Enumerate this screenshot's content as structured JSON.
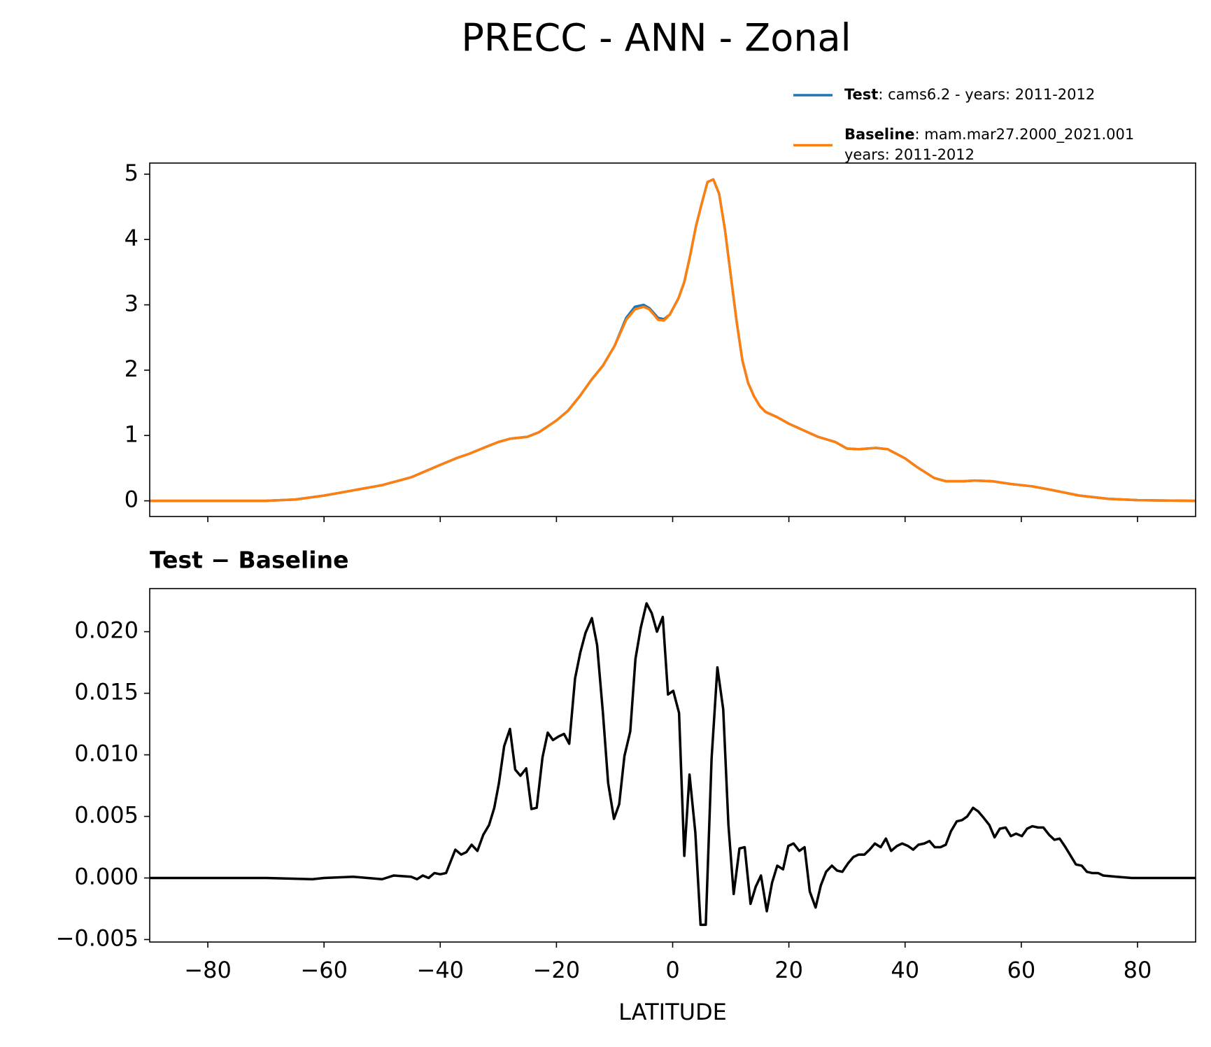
{
  "chart_data": [
    {
      "type": "line",
      "title": "PRECC - ANN - Zonal",
      "xlim": [
        -90,
        90
      ],
      "ylim": [
        -0.24,
        5.17
      ],
      "xticks": [
        -80,
        -60,
        -40,
        -20,
        0,
        20,
        40,
        60,
        80
      ],
      "yticks": [
        0,
        1,
        2,
        3,
        4,
        5
      ],
      "x": [
        -90,
        -70,
        -65,
        -60,
        -55,
        -50,
        -45,
        -40,
        -37,
        -35,
        -32,
        -30,
        -28,
        -25,
        -23,
        -20,
        -18,
        -16,
        -14,
        -12,
        -10,
        -8,
        -6.5,
        -5,
        -4,
        -2.5,
        -1.5,
        -0.5,
        1,
        2,
        3,
        4,
        5,
        6,
        7,
        8,
        9,
        10,
        11,
        12,
        13,
        14,
        15,
        16,
        18,
        20,
        22,
        25,
        28,
        30,
        32,
        35,
        37,
        40,
        42,
        45,
        47,
        50,
        52,
        55,
        58,
        60,
        62,
        65,
        70,
        75,
        80,
        90
      ],
      "series": [
        {
          "name": "Test",
          "description": [
            ": cams6.2 - years: 2011-2012"
          ],
          "color": "#1f77b4",
          "values": [
            0,
            0,
            0.02,
            0.08,
            0.16,
            0.24,
            0.36,
            0.55,
            0.66,
            0.72,
            0.83,
            0.9,
            0.95,
            0.98,
            1.05,
            1.23,
            1.38,
            1.6,
            1.85,
            2.07,
            2.37,
            2.8,
            2.97,
            3.0,
            2.95,
            2.8,
            2.78,
            2.85,
            3.1,
            3.35,
            3.75,
            4.2,
            4.55,
            4.88,
            4.92,
            4.7,
            4.15,
            3.45,
            2.75,
            2.15,
            1.8,
            1.6,
            1.45,
            1.36,
            1.28,
            1.18,
            1.1,
            0.98,
            0.9,
            0.8,
            0.79,
            0.81,
            0.79,
            0.65,
            0.52,
            0.35,
            0.3,
            0.3,
            0.31,
            0.3,
            0.26,
            0.24,
            0.22,
            0.17,
            0.08,
            0.03,
            0.01,
            0
          ]
        },
        {
          "name": "Baseline",
          "description": [
            ": mam.mar27.2000_2021.001",
            "years: 2011-2012"
          ],
          "color": "#ff7f0e",
          "values": [
            0,
            0,
            0.02,
            0.08,
            0.16,
            0.24,
            0.36,
            0.55,
            0.66,
            0.72,
            0.83,
            0.9,
            0.95,
            0.98,
            1.05,
            1.23,
            1.38,
            1.6,
            1.85,
            2.07,
            2.37,
            2.77,
            2.93,
            2.97,
            2.93,
            2.77,
            2.76,
            2.85,
            3.1,
            3.35,
            3.75,
            4.2,
            4.55,
            4.88,
            4.92,
            4.7,
            4.15,
            3.45,
            2.75,
            2.15,
            1.8,
            1.6,
            1.45,
            1.36,
            1.28,
            1.18,
            1.1,
            0.98,
            0.9,
            0.8,
            0.79,
            0.81,
            0.79,
            0.65,
            0.52,
            0.35,
            0.3,
            0.3,
            0.31,
            0.3,
            0.26,
            0.24,
            0.22,
            0.17,
            0.08,
            0.03,
            0.01,
            0
          ]
        }
      ]
    },
    {
      "type": "line",
      "title": "Test − Baseline",
      "xlabel": "LATITUDE",
      "xlim": [
        -90,
        90
      ],
      "ylim": [
        -0.0052,
        0.0235
      ],
      "xticks": [
        {
          "value": -80,
          "label": "−80"
        },
        {
          "value": -60,
          "label": "−60"
        },
        {
          "value": -40,
          "label": "−40"
        },
        {
          "value": -20,
          "label": "−20"
        },
        {
          "value": 0,
          "label": "0"
        },
        {
          "value": 20,
          "label": "20"
        },
        {
          "value": 40,
          "label": "40"
        },
        {
          "value": 60,
          "label": "60"
        },
        {
          "value": 80,
          "label": "80"
        }
      ],
      "yticks": [
        {
          "value": -0.005,
          "label": "−0.005"
        },
        {
          "value": 0,
          "label": "0.000"
        },
        {
          "value": 0.005,
          "label": "0.005"
        },
        {
          "value": 0.01,
          "label": "0.010"
        },
        {
          "value": 0.015,
          "label": "0.015"
        },
        {
          "value": 0.02,
          "label": "0.020"
        }
      ],
      "x": [
        -90,
        -70,
        -62,
        -60,
        -55,
        -50,
        -48,
        -45,
        -44,
        -43,
        -42,
        -41,
        -40,
        -39,
        -37.4,
        -36.4,
        -35.5,
        -34.6,
        -33.6,
        -32.6,
        -31.6,
        -30.7,
        -29.9,
        -29,
        -28,
        -27.1,
        -26.2,
        -25.2,
        -24.3,
        -23.4,
        -22.4,
        -21.5,
        -20.6,
        -19.6,
        -18.7,
        -17.8,
        -16.8,
        -15.9,
        -15,
        -13.9,
        -13,
        -12,
        -11.1,
        -10.1,
        -9.2,
        -8.3,
        -7.3,
        -6.4,
        -5.5,
        -4.5,
        -3.6,
        -2.7,
        -1.7,
        -0.8,
        0.1,
        1.1,
        2,
        2.9,
        3.9,
        4.8,
        5.7,
        6.7,
        7.7,
        8.7,
        9.6,
        10.5,
        11.5,
        12.4,
        13.4,
        14.3,
        15.2,
        16.2,
        17.1,
        18,
        19,
        19.9,
        20.8,
        21.8,
        22.7,
        23.6,
        24.6,
        25.5,
        26.4,
        27.4,
        28.3,
        29.2,
        30.2,
        31.1,
        32,
        33,
        33.9,
        34.8,
        35.8,
        36.7,
        37.6,
        38.6,
        39.5,
        40.5,
        41.4,
        42.3,
        43.3,
        44.2,
        45.1,
        46.1,
        47,
        47.9,
        48.9,
        49.8,
        50.7,
        51.7,
        52.6,
        53.5,
        54.5,
        55.4,
        56.3,
        57.3,
        58.2,
        59.1,
        60.1,
        61,
        61.9,
        62.9,
        63.8,
        64.8,
        65.7,
        66.6,
        67.6,
        68.5,
        69.4,
        70.4,
        71.3,
        72.2,
        73.2,
        74.1,
        76.4,
        79,
        90
      ],
      "series": [
        {
          "name": "Test − Baseline",
          "color": "#000000",
          "values": [
            0,
            0,
            -0.0001,
            0,
            0.0001,
            -0.0001,
            0.0002,
            0.0001,
            -0.0001,
            0.0002,
            0,
            0.0004,
            0.0003,
            0.0004,
            0.0023,
            0.0019,
            0.0021,
            0.0027,
            0.0022,
            0.0035,
            0.0043,
            0.0057,
            0.0077,
            0.0107,
            0.0121,
            0.0088,
            0.0083,
            0.0089,
            0.0056,
            0.0057,
            0.0098,
            0.0118,
            0.0112,
            0.0115,
            0.0117,
            0.0109,
            0.0162,
            0.0183,
            0.0199,
            0.0211,
            0.0189,
            0.0134,
            0.0077,
            0.0048,
            0.006,
            0.0099,
            0.0119,
            0.0178,
            0.0203,
            0.0223,
            0.0215,
            0.02,
            0.0212,
            0.0149,
            0.0152,
            0.0134,
            0.0018,
            0.0084,
            0.0037,
            -0.0038,
            -0.0038,
            0.0097,
            0.0171,
            0.0137,
            0.0043,
            -0.0013,
            0.0024,
            0.0025,
            -0.0021,
            -0.0007,
            0.0002,
            -0.0027,
            -0.0004,
            0.001,
            0.0007,
            0.0026,
            0.0028,
            0.0022,
            0.0025,
            -0.0011,
            -0.0024,
            -0.0006,
            0.0005,
            0.001,
            0.0006,
            0.0005,
            0.0012,
            0.0017,
            0.0019,
            0.0019,
            0.0023,
            0.0028,
            0.0025,
            0.0032,
            0.0022,
            0.0026,
            0.0028,
            0.0026,
            0.0023,
            0.0027,
            0.0028,
            0.003,
            0.0025,
            0.0025,
            0.0027,
            0.0038,
            0.0046,
            0.0047,
            0.005,
            0.0057,
            0.0054,
            0.0049,
            0.0043,
            0.0033,
            0.004,
            0.0041,
            0.0034,
            0.0036,
            0.0034,
            0.004,
            0.0042,
            0.0041,
            0.0041,
            0.0035,
            0.0031,
            0.0032,
            0.0025,
            0.0018,
            0.0011,
            0.001,
            0.0005,
            0.0004,
            0.0004,
            0.0002,
            0.0001,
            0,
            0
          ]
        }
      ]
    }
  ]
}
